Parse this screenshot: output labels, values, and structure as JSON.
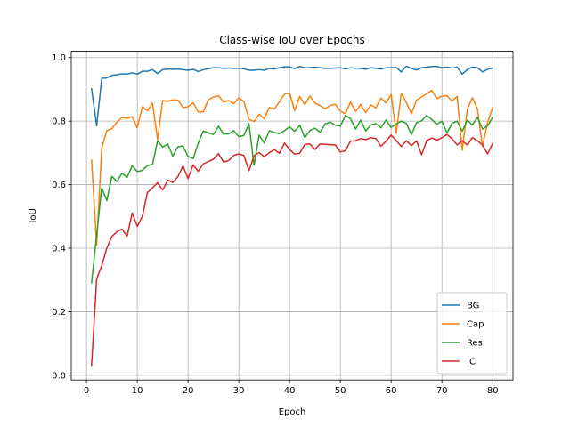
{
  "chart_data": {
    "type": "line",
    "title": "Class-wise IoU over Epochs",
    "xlabel": "Epoch",
    "ylabel": "IoU",
    "xlim": [
      -3,
      84
    ],
    "ylim": [
      -0.015,
      1.02
    ],
    "xticks": [
      0,
      10,
      20,
      30,
      40,
      50,
      60,
      70,
      80
    ],
    "yticks": [
      0.0,
      0.2,
      0.4,
      0.6,
      0.8,
      1.0
    ],
    "xtick_labels": [
      "0",
      "10",
      "20",
      "30",
      "40",
      "50",
      "60",
      "70",
      "80"
    ],
    "ytick_labels": [
      "0.0",
      "0.2",
      "0.4",
      "0.6",
      "0.8",
      "1.0"
    ],
    "grid": true,
    "legend_position": "lower-right",
    "x": [
      1,
      2,
      3,
      4,
      5,
      6,
      7,
      8,
      9,
      10,
      11,
      12,
      13,
      14,
      15,
      16,
      17,
      18,
      19,
      20,
      21,
      22,
      23,
      24,
      25,
      26,
      27,
      28,
      29,
      30,
      31,
      32,
      33,
      34,
      35,
      36,
      37,
      38,
      39,
      40,
      41,
      42,
      43,
      44,
      45,
      46,
      47,
      48,
      49,
      50,
      51,
      52,
      53,
      54,
      55,
      56,
      57,
      58,
      59,
      60,
      61,
      62,
      63,
      64,
      65,
      66,
      67,
      68,
      69,
      70,
      71,
      72,
      73,
      74,
      75,
      76,
      77,
      78,
      79,
      80
    ],
    "series": [
      {
        "name": "BG",
        "color": "#1f77b4",
        "values": [
          0.902,
          0.785,
          0.935,
          0.936,
          0.944,
          0.946,
          0.949,
          0.948,
          0.952,
          0.948,
          0.957,
          0.957,
          0.962,
          0.95,
          0.962,
          0.964,
          0.963,
          0.964,
          0.962,
          0.96,
          0.963,
          0.956,
          0.962,
          0.965,
          0.968,
          0.968,
          0.966,
          0.967,
          0.966,
          0.966,
          0.965,
          0.96,
          0.96,
          0.962,
          0.96,
          0.966,
          0.964,
          0.968,
          0.971,
          0.971,
          0.965,
          0.972,
          0.968,
          0.968,
          0.97,
          0.968,
          0.966,
          0.966,
          0.967,
          0.968,
          0.964,
          0.968,
          0.966,
          0.966,
          0.963,
          0.968,
          0.966,
          0.964,
          0.968,
          0.968,
          0.969,
          0.955,
          0.973,
          0.966,
          0.961,
          0.968,
          0.97,
          0.972,
          0.972,
          0.968,
          0.97,
          0.967,
          0.97,
          0.948,
          0.962,
          0.97,
          0.968,
          0.955,
          0.963,
          0.967
        ]
      },
      {
        "name": "Cap",
        "color": "#ff7f0e",
        "values": [
          0.677,
          0.41,
          0.715,
          0.77,
          0.776,
          0.797,
          0.812,
          0.809,
          0.814,
          0.779,
          0.845,
          0.833,
          0.856,
          0.742,
          0.865,
          0.862,
          0.867,
          0.866,
          0.843,
          0.845,
          0.858,
          0.829,
          0.829,
          0.867,
          0.876,
          0.88,
          0.86,
          0.865,
          0.855,
          0.873,
          0.862,
          0.806,
          0.799,
          0.822,
          0.808,
          0.843,
          0.838,
          0.861,
          0.885,
          0.889,
          0.833,
          0.878,
          0.852,
          0.879,
          0.857,
          0.849,
          0.838,
          0.85,
          0.853,
          0.832,
          0.823,
          0.86,
          0.831,
          0.852,
          0.827,
          0.851,
          0.842,
          0.873,
          0.857,
          0.884,
          0.762,
          0.888,
          0.858,
          0.823,
          0.866,
          0.876,
          0.886,
          0.897,
          0.871,
          0.879,
          0.88,
          0.863,
          0.878,
          0.708,
          0.836,
          0.874,
          0.838,
          0.72,
          0.796,
          0.843
        ]
      },
      {
        "name": "Res",
        "color": "#2ca02c",
        "values": [
          0.291,
          0.443,
          0.59,
          0.55,
          0.626,
          0.61,
          0.636,
          0.623,
          0.66,
          0.641,
          0.645,
          0.66,
          0.664,
          0.738,
          0.718,
          0.728,
          0.69,
          0.719,
          0.722,
          0.689,
          0.682,
          0.73,
          0.769,
          0.763,
          0.758,
          0.784,
          0.759,
          0.76,
          0.77,
          0.751,
          0.755,
          0.792,
          0.661,
          0.756,
          0.731,
          0.77,
          0.764,
          0.761,
          0.77,
          0.782,
          0.768,
          0.787,
          0.748,
          0.77,
          0.778,
          0.765,
          0.791,
          0.797,
          0.787,
          0.784,
          0.818,
          0.808,
          0.775,
          0.803,
          0.769,
          0.788,
          0.792,
          0.779,
          0.804,
          0.78,
          0.791,
          0.8,
          0.793,
          0.757,
          0.795,
          0.801,
          0.818,
          0.805,
          0.79,
          0.8,
          0.763,
          0.793,
          0.8,
          0.768,
          0.803,
          0.788,
          0.812,
          0.775,
          0.785,
          0.812
        ]
      },
      {
        "name": "IC",
        "color": "#d62728",
        "values": [
          0.032,
          0.303,
          0.345,
          0.4,
          0.437,
          0.452,
          0.46,
          0.438,
          0.511,
          0.469,
          0.5,
          0.575,
          0.59,
          0.606,
          0.583,
          0.614,
          0.607,
          0.625,
          0.659,
          0.619,
          0.662,
          0.642,
          0.665,
          0.673,
          0.68,
          0.698,
          0.671,
          0.676,
          0.692,
          0.697,
          0.692,
          0.644,
          0.691,
          0.701,
          0.688,
          0.701,
          0.71,
          0.699,
          0.731,
          0.711,
          0.696,
          0.699,
          0.727,
          0.728,
          0.711,
          0.728,
          0.727,
          0.726,
          0.725,
          0.703,
          0.707,
          0.737,
          0.738,
          0.745,
          0.742,
          0.748,
          0.745,
          0.721,
          0.737,
          0.756,
          0.739,
          0.72,
          0.738,
          0.723,
          0.738,
          0.694,
          0.738,
          0.747,
          0.74,
          0.748,
          0.758,
          0.745,
          0.725,
          0.738,
          0.725,
          0.748,
          0.738,
          0.725,
          0.697,
          0.73
        ]
      }
    ]
  }
}
